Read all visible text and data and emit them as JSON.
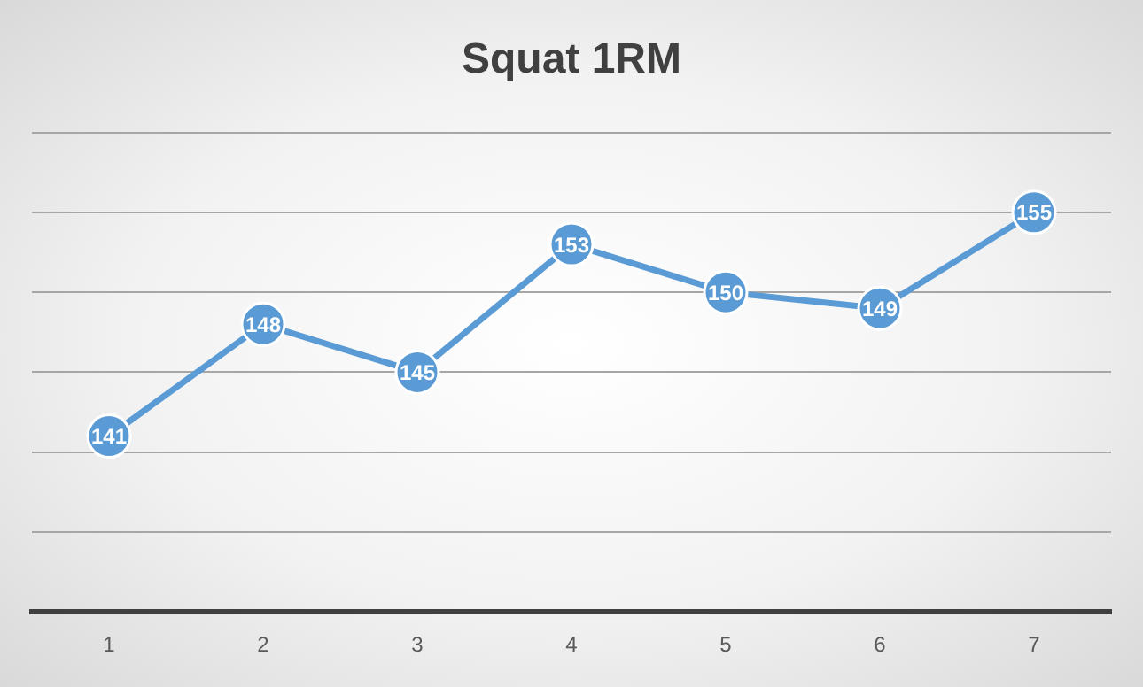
{
  "chart_data": {
    "type": "line",
    "title": "Squat 1RM",
    "categories": [
      "1",
      "2",
      "3",
      "4",
      "5",
      "6",
      "7"
    ],
    "series": [
      {
        "color": "#5b9bd5",
        "values": [
          141,
          148,
          145,
          153,
          150,
          149,
          155
        ]
      }
    ],
    "ylim": [
      130,
      160
    ],
    "yticks": [
      {
        "value": 130,
        "label": null
      },
      {
        "value": 135,
        "label": null
      },
      {
        "value": 140,
        "label": null
      },
      {
        "value": 145,
        "label": null
      },
      {
        "value": 150,
        "label": null
      },
      {
        "value": 155,
        "label": null
      },
      {
        "value": 160,
        "label": null
      }
    ],
    "tick_labels": "x",
    "grid": "y",
    "marker": "circle",
    "line_style": "solid",
    "data_labels": true
  }
}
